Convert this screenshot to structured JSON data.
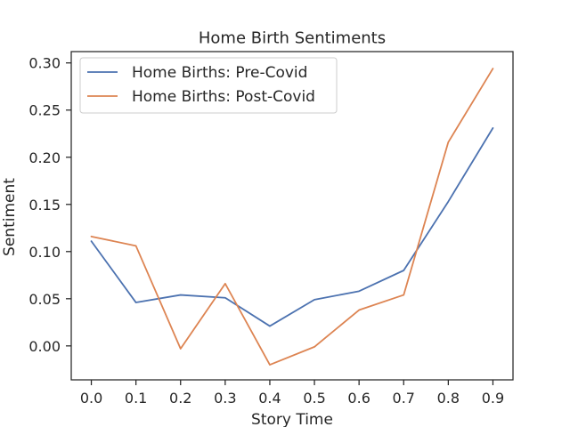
{
  "chart_data": {
    "type": "line",
    "title": "Home Birth Sentiments",
    "xlabel": "Story Time",
    "ylabel": "Sentiment",
    "x": [
      0.0,
      0.1,
      0.2,
      0.3,
      0.4,
      0.5,
      0.6,
      0.7,
      0.8,
      0.9
    ],
    "xticks": [
      "0.0",
      "0.1",
      "0.2",
      "0.3",
      "0.4",
      "0.5",
      "0.6",
      "0.7",
      "0.8",
      "0.9"
    ],
    "xlim": [
      -0.045,
      0.945
    ],
    "yticks": [
      "0.00",
      "0.05",
      "0.10",
      "0.15",
      "0.20",
      "0.25",
      "0.30"
    ],
    "ylim": [
      -0.036,
      0.312
    ],
    "grid": false,
    "legend_position": "top-left",
    "series": [
      {
        "name": "Home Births: Pre-Covid",
        "color": "#4c72b0",
        "values": [
          0.111,
          0.046,
          0.054,
          0.051,
          0.021,
          0.049,
          0.058,
          0.08,
          0.153,
          0.231
        ]
      },
      {
        "name": "Home Births: Post-Covid",
        "color": "#dd8452",
        "values": [
          0.116,
          0.106,
          -0.003,
          0.066,
          -0.02,
          -0.001,
          0.038,
          0.054,
          0.216,
          0.294
        ]
      }
    ]
  }
}
